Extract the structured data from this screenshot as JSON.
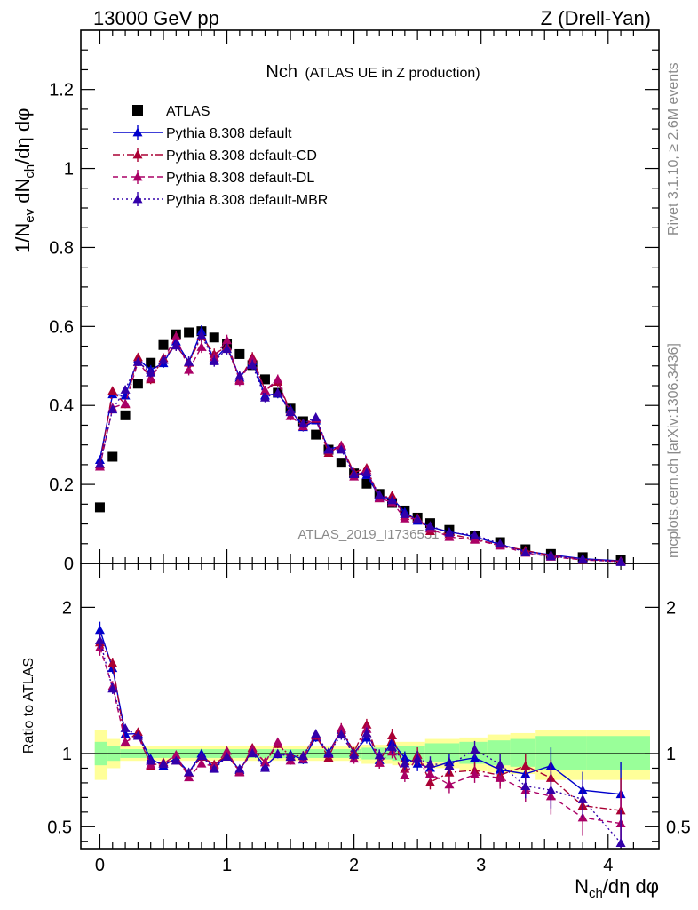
{
  "header": {
    "left": "13000 GeV pp",
    "right": "Z (Drell-Yan)"
  },
  "plot_title": {
    "main": "Nch",
    "sub": "(ATLAS UE in Z production)"
  },
  "side_texts": {
    "rivet": "Rivet 3.1.10, ≥ 2.6M events",
    "mcplots": "mcplots.cern.ch [arXiv:1306.3436]"
  },
  "watermark": "ATLAS_2019_I1736531",
  "axis_labels": {
    "y_main": "1/N_ev dN_ch/dη dφ",
    "y_ratio": "Ratio to ATLAS",
    "x": "N_ch/dη dφ"
  },
  "colors": {
    "data": "#000000",
    "default": "#0000cc",
    "cd": "#aa0033",
    "dl": "#aa0066",
    "mbr": "#3300aa",
    "band_inner": "#99ff99",
    "band_outer": "#ffff99"
  },
  "chart_data": {
    "type": "scatter",
    "title": "Nch (ATLAS UE in Z production)",
    "xlabel": "N_ch/dη dφ",
    "ylabel": "1/N_ev dN_ch/dη dφ",
    "xlim": [
      -0.15,
      4.4
    ],
    "ylim": [
      0,
      1.35
    ],
    "ratio_ylim": [
      0.35,
      2.3
    ],
    "x_ticks": [
      0,
      1,
      2,
      3,
      4
    ],
    "x_tick_labels": [
      "0",
      "1",
      "2",
      "3",
      "4"
    ],
    "y_ticks": [
      0,
      0.2,
      0.4,
      0.6,
      0.8,
      1,
      1.2
    ],
    "y_tick_labels": [
      "0",
      "0.2",
      "0.4",
      "0.6",
      "0.8",
      "1",
      "1.2"
    ],
    "ratio_ticks": [
      0.5,
      1,
      2
    ],
    "ratio_tick_labels": [
      "0.5",
      "1",
      "2"
    ],
    "x": [
      0.0,
      0.1,
      0.2,
      0.3,
      0.4,
      0.5,
      0.6,
      0.7,
      0.8,
      0.9,
      1.0,
      1.1,
      1.2,
      1.3,
      1.4,
      1.5,
      1.6,
      1.7,
      1.8,
      1.9,
      2.0,
      2.1,
      2.2,
      2.3,
      2.4,
      2.5,
      2.6,
      2.75,
      2.95,
      3.15,
      3.35,
      3.55,
      3.8,
      4.1
    ],
    "series": [
      {
        "name": "ATLAS",
        "style": "data",
        "values": [
          0.142,
          0.27,
          0.375,
          0.455,
          0.508,
          0.553,
          0.58,
          0.585,
          0.588,
          0.572,
          0.555,
          0.53,
          0.502,
          0.466,
          0.432,
          0.392,
          0.36,
          0.326,
          0.288,
          0.255,
          0.228,
          0.202,
          0.176,
          0.153,
          0.134,
          0.116,
          0.102,
          0.085,
          0.07,
          0.054,
          0.036,
          0.024,
          0.016,
          0.009
        ],
        "errors": [
          0.003,
          0.003,
          0.003,
          0.003,
          0.003,
          0.003,
          0.003,
          0.003,
          0.003,
          0.003,
          0.003,
          0.003,
          0.003,
          0.003,
          0.003,
          0.003,
          0.003,
          0.003,
          0.003,
          0.003,
          0.003,
          0.003,
          0.003,
          0.003,
          0.003,
          0.003,
          0.003,
          0.003,
          0.003,
          0.003,
          0.003,
          0.003,
          0.002,
          0.002
        ]
      },
      {
        "name": "Pythia 8.308 default",
        "style": "solid",
        "color": "#0000cc",
        "values": [
          0.262,
          0.428,
          0.425,
          0.517,
          0.49,
          0.507,
          0.562,
          0.51,
          0.588,
          0.515,
          0.55,
          0.47,
          0.512,
          0.425,
          0.43,
          0.39,
          0.345,
          0.362,
          0.29,
          0.296,
          0.229,
          0.224,
          0.168,
          0.165,
          0.13,
          0.108,
          0.092,
          0.08,
          0.068,
          0.048,
          0.031,
          0.022,
          0.012,
          0.0065
        ],
        "errors": [
          0.008,
          0.01,
          0.01,
          0.01,
          0.012,
          0.012,
          0.014,
          0.014,
          0.015,
          0.014,
          0.014,
          0.013,
          0.013,
          0.012,
          0.012,
          0.011,
          0.011,
          0.01,
          0.009,
          0.009,
          0.008,
          0.008,
          0.007,
          0.007,
          0.006,
          0.006,
          0.005,
          0.005,
          0.004,
          0.004,
          0.003,
          0.003,
          0.002,
          0.002
        ]
      },
      {
        "name": "Pythia 8.308 default-CD",
        "style": "dashdot",
        "color": "#aa0033",
        "values": [
          0.25,
          0.437,
          0.403,
          0.522,
          0.466,
          0.52,
          0.552,
          0.508,
          0.575,
          0.53,
          0.549,
          0.465,
          0.522,
          0.438,
          0.46,
          0.385,
          0.355,
          0.366,
          0.28,
          0.299,
          0.23,
          0.242,
          0.165,
          0.172,
          0.12,
          0.115,
          0.082,
          0.074,
          0.062,
          0.046,
          0.033,
          0.02,
          0.0103,
          0.0055
        ],
        "errors": [
          0.008,
          0.01,
          0.01,
          0.01,
          0.012,
          0.012,
          0.014,
          0.014,
          0.015,
          0.014,
          0.014,
          0.013,
          0.013,
          0.012,
          0.012,
          0.011,
          0.011,
          0.01,
          0.009,
          0.009,
          0.008,
          0.008,
          0.007,
          0.007,
          0.006,
          0.006,
          0.005,
          0.005,
          0.004,
          0.004,
          0.003,
          0.003,
          0.002,
          0.002
        ]
      },
      {
        "name": "Pythia 8.308 default-DL",
        "style": "dashed",
        "color": "#aa0066",
        "values": [
          0.245,
          0.394,
          0.405,
          0.51,
          0.47,
          0.515,
          0.575,
          0.49,
          0.548,
          0.522,
          0.565,
          0.462,
          0.516,
          0.438,
          0.466,
          0.373,
          0.347,
          0.368,
          0.287,
          0.298,
          0.22,
          0.236,
          0.165,
          0.155,
          0.114,
          0.113,
          0.088,
          0.067,
          0.06,
          0.045,
          0.027,
          0.017,
          0.009,
          0.0047
        ],
        "errors": [
          0.008,
          0.01,
          0.01,
          0.01,
          0.012,
          0.012,
          0.014,
          0.014,
          0.015,
          0.014,
          0.014,
          0.013,
          0.013,
          0.012,
          0.012,
          0.011,
          0.011,
          0.01,
          0.009,
          0.009,
          0.008,
          0.008,
          0.007,
          0.007,
          0.006,
          0.006,
          0.005,
          0.005,
          0.004,
          0.004,
          0.003,
          0.003,
          0.002,
          0.002
        ]
      },
      {
        "name": "Pythia 8.308 default-MBR",
        "style": "dotted",
        "color": "#3300aa",
        "values": [
          0.252,
          0.39,
          0.44,
          0.51,
          0.483,
          0.515,
          0.552,
          0.51,
          0.578,
          0.512,
          0.543,
          0.475,
          0.503,
          0.42,
          0.432,
          0.383,
          0.354,
          0.37,
          0.288,
          0.288,
          0.226,
          0.23,
          0.174,
          0.16,
          0.125,
          0.112,
          0.095,
          0.078,
          0.072,
          0.05,
          0.028,
          0.018,
          0.011,
          0.0035
        ],
        "errors": [
          0.008,
          0.01,
          0.01,
          0.01,
          0.012,
          0.012,
          0.014,
          0.014,
          0.015,
          0.014,
          0.014,
          0.013,
          0.013,
          0.012,
          0.012,
          0.011,
          0.011,
          0.01,
          0.009,
          0.009,
          0.008,
          0.008,
          0.007,
          0.007,
          0.006,
          0.006,
          0.005,
          0.005,
          0.004,
          0.004,
          0.003,
          0.003,
          0.002,
          0.002
        ]
      }
    ],
    "ratio_bands": [
      {
        "x0": -0.04,
        "x1": 0.06,
        "inner": [
          0.92,
          1.08
        ],
        "outer": [
          0.82,
          1.16
        ]
      },
      {
        "x0": 0.06,
        "x1": 0.16,
        "inner": [
          0.95,
          1.05
        ],
        "outer": [
          0.9,
          1.1
        ]
      },
      {
        "x0": 0.16,
        "x1": 2.06,
        "inner": [
          0.97,
          1.03
        ],
        "outer": [
          0.95,
          1.05
        ]
      },
      {
        "x0": 2.06,
        "x1": 2.3,
        "inner": [
          0.96,
          1.04
        ],
        "outer": [
          0.93,
          1.06
        ]
      },
      {
        "x0": 2.3,
        "x1": 2.56,
        "inner": [
          0.95,
          1.05
        ],
        "outer": [
          0.92,
          1.08
        ]
      },
      {
        "x0": 2.56,
        "x1": 2.83,
        "inner": [
          0.94,
          1.07
        ],
        "outer": [
          0.9,
          1.1
        ]
      },
      {
        "x0": 2.83,
        "x1": 3.05,
        "inner": [
          0.93,
          1.08
        ],
        "outer": [
          0.88,
          1.11
        ]
      },
      {
        "x0": 3.05,
        "x1": 3.23,
        "inner": [
          0.92,
          1.09
        ],
        "outer": [
          0.87,
          1.13
        ]
      },
      {
        "x0": 3.23,
        "x1": 3.43,
        "inner": [
          0.91,
          1.1
        ],
        "outer": [
          0.86,
          1.14
        ]
      },
      {
        "x0": 3.43,
        "x1": 3.83,
        "inner": [
          0.89,
          1.12
        ],
        "outer": [
          0.82,
          1.16
        ]
      },
      {
        "x0": 3.83,
        "x1": 4.33,
        "inner": [
          0.89,
          1.12
        ],
        "outer": [
          0.82,
          1.16
        ]
      }
    ]
  }
}
